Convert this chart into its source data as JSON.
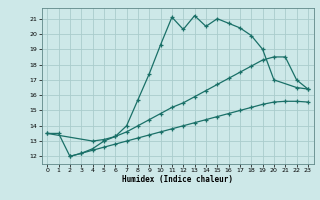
{
  "bg_color": "#cde8e8",
  "grid_color": "#aacccc",
  "line_color": "#1a7068",
  "xlabel": "Humidex (Indice chaleur)",
  "xlim": [
    -0.5,
    23.5
  ],
  "ylim": [
    11.5,
    21.7
  ],
  "xticks": [
    0,
    1,
    2,
    3,
    4,
    5,
    6,
    7,
    8,
    9,
    10,
    11,
    12,
    13,
    14,
    15,
    16,
    17,
    18,
    19,
    20,
    21,
    22,
    23
  ],
  "yticks": [
    12,
    13,
    14,
    15,
    16,
    17,
    18,
    19,
    20,
    21
  ],
  "curve1_x": [
    0,
    1,
    2,
    3,
    4,
    5,
    6,
    7,
    8,
    9,
    10,
    11,
    12,
    13,
    14,
    15,
    16,
    17,
    18,
    19,
    20,
    22,
    23
  ],
  "curve1_y": [
    13.5,
    13.5,
    12.0,
    12.2,
    12.5,
    13.0,
    13.3,
    14.0,
    15.7,
    17.4,
    19.3,
    21.1,
    20.3,
    21.2,
    20.5,
    21.0,
    20.7,
    20.4,
    19.9,
    19.0,
    17.0,
    16.5,
    16.4
  ],
  "curve2_x": [
    0,
    4,
    5,
    6,
    7,
    8,
    9,
    10,
    11,
    12,
    13,
    14,
    15,
    16,
    17,
    18,
    19,
    20,
    21,
    22,
    23
  ],
  "curve2_y": [
    13.5,
    13.0,
    13.1,
    13.3,
    13.6,
    14.0,
    14.4,
    14.8,
    15.2,
    15.5,
    15.9,
    16.3,
    16.7,
    17.1,
    17.5,
    17.9,
    18.3,
    18.5,
    18.5,
    17.0,
    16.4
  ],
  "curve3_x": [
    2,
    3,
    4,
    5,
    6,
    7,
    8,
    9,
    10,
    11,
    12,
    13,
    14,
    15,
    16,
    17,
    18,
    19,
    20,
    21,
    22,
    23
  ],
  "curve3_y": [
    12.0,
    12.2,
    12.4,
    12.6,
    12.8,
    13.0,
    13.2,
    13.4,
    13.6,
    13.8,
    14.0,
    14.2,
    14.4,
    14.6,
    14.8,
    15.0,
    15.2,
    15.4,
    15.55,
    15.6,
    15.6,
    15.55
  ]
}
